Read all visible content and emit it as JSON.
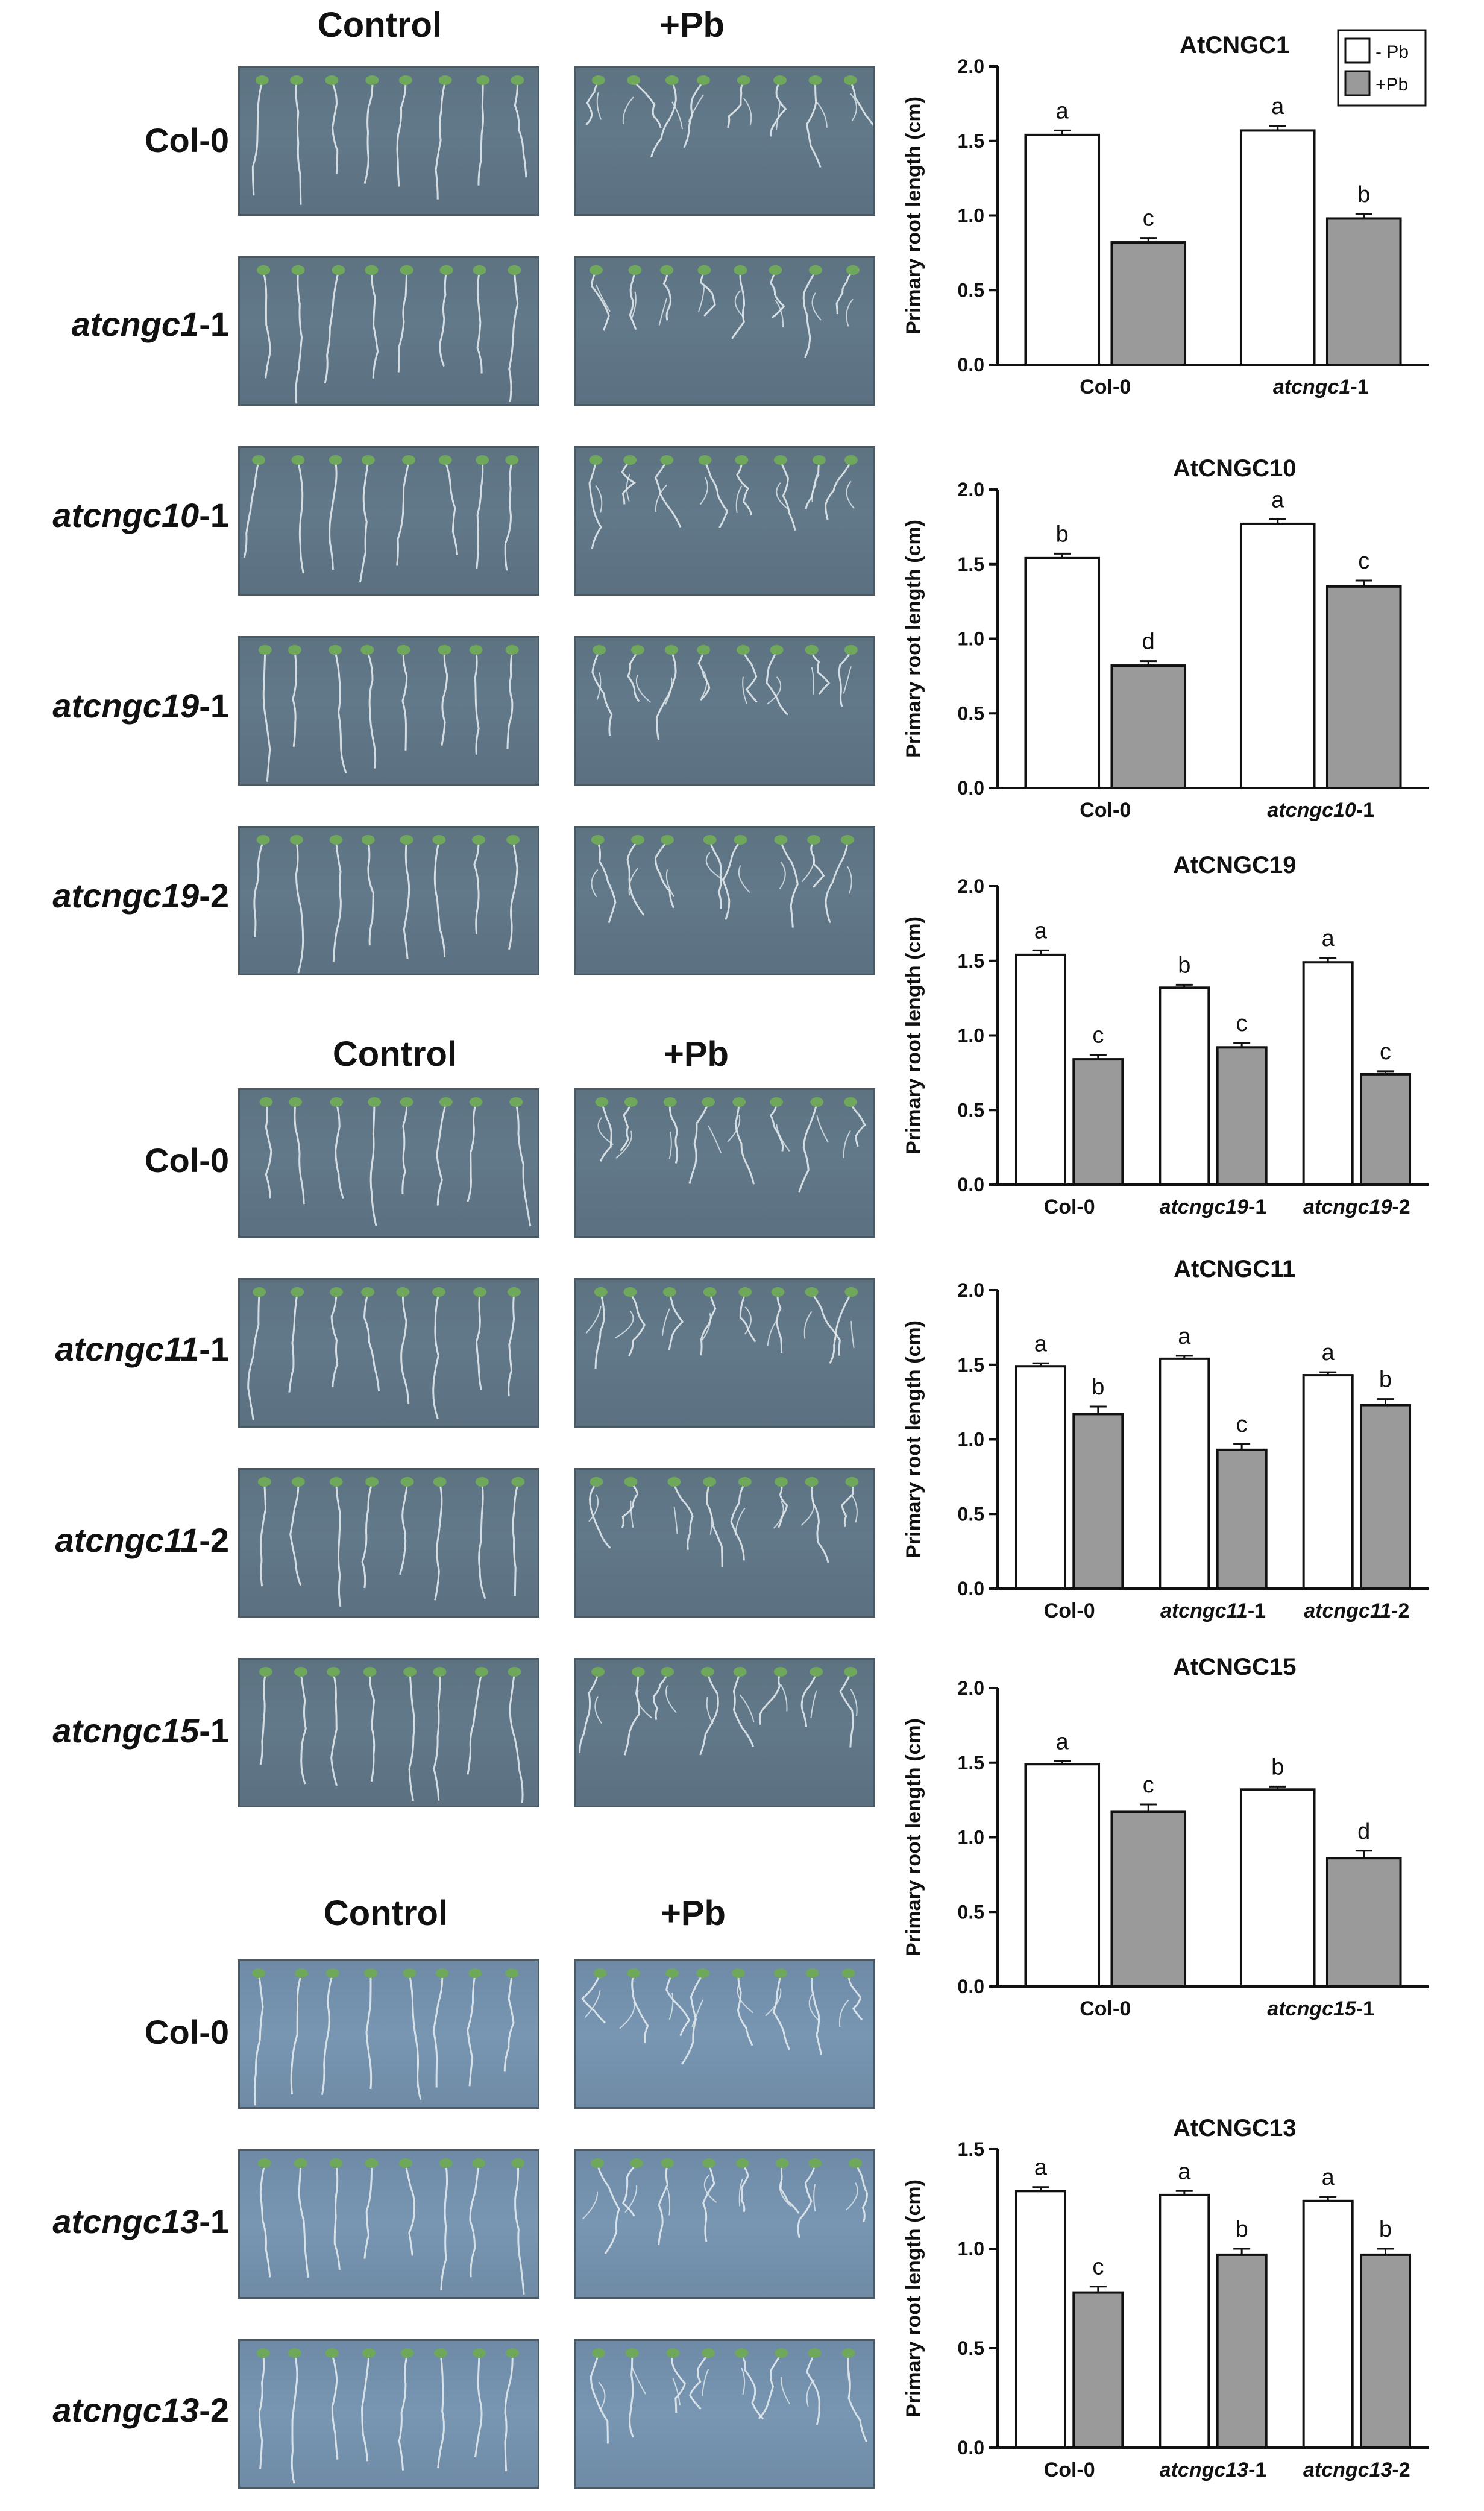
{
  "figure": {
    "group1": {
      "headers": {
        "control": "Control",
        "pb": "+Pb"
      },
      "rows": [
        {
          "italic": "",
          "plain": "Col-0"
        },
        {
          "italic": "atcngc1",
          "plain": "-1"
        },
        {
          "italic": "atcngc10",
          "plain": "-1"
        },
        {
          "italic": "atcngc19",
          "plain": "-1"
        },
        {
          "italic": "atcngc19",
          "plain": "-2"
        }
      ]
    },
    "group2": {
      "headers": {
        "control": "Control",
        "pb": "+Pb"
      },
      "rows": [
        {
          "italic": "",
          "plain": "Col-0"
        },
        {
          "italic": "atcngc11",
          "plain": "-1"
        },
        {
          "italic": "atcngc11",
          "plain": "-2"
        },
        {
          "italic": "atcngc15",
          "plain": "-1"
        }
      ]
    },
    "group3": {
      "headers": {
        "control": "Control",
        "pb": "+Pb"
      },
      "rows": [
        {
          "italic": "",
          "plain": "Col-0"
        },
        {
          "italic": "atcngc13",
          "plain": "-1"
        },
        {
          "italic": "atcngc13",
          "plain": "-2"
        }
      ]
    }
  },
  "legend": {
    "minus": "- Pb",
    "plus": "+Pb"
  },
  "colors": {
    "minus_fill": "#ffffff",
    "plus_fill": "#9a9a9a",
    "stroke": "#111111"
  },
  "chart_data": [
    {
      "type": "bar",
      "title": "AtCNGC1",
      "ylabel": "Primary root length (cm)",
      "ylim": [
        0,
        2.0
      ],
      "yticks": [
        "0.0",
        "0.5",
        "1.0",
        "1.5",
        "2.0"
      ],
      "legend": true,
      "categories": [
        {
          "italic": "",
          "plain": "Col-0"
        },
        {
          "italic": "atcngc1",
          "plain": "-1"
        }
      ],
      "series": [
        {
          "name": "- Pb",
          "values": [
            1.54,
            1.57
          ],
          "errors": [
            0.03,
            0.03
          ],
          "letters": [
            "a",
            "a"
          ]
        },
        {
          "name": "+Pb",
          "values": [
            0.82,
            0.98
          ],
          "errors": [
            0.03,
            0.03
          ],
          "letters": [
            "c",
            "b"
          ]
        }
      ]
    },
    {
      "type": "bar",
      "title": "AtCNGC10",
      "ylabel": "Primary root length (cm)",
      "ylim": [
        0,
        2.0
      ],
      "yticks": [
        "0.0",
        "0.5",
        "1.0",
        "1.5",
        "2.0"
      ],
      "categories": [
        {
          "italic": "",
          "plain": "Col-0"
        },
        {
          "italic": "atcngc10",
          "plain": "-1"
        }
      ],
      "series": [
        {
          "name": "- Pb",
          "values": [
            1.54,
            1.77
          ],
          "errors": [
            0.03,
            0.03
          ],
          "letters": [
            "b",
            "a"
          ]
        },
        {
          "name": "+Pb",
          "values": [
            0.82,
            1.35
          ],
          "errors": [
            0.03,
            0.04
          ],
          "letters": [
            "d",
            "c"
          ]
        }
      ]
    },
    {
      "type": "bar",
      "title": "AtCNGC19",
      "ylabel": "Primary root length (cm)",
      "ylim": [
        0,
        2.0
      ],
      "yticks": [
        "0.0",
        "0.5",
        "1.0",
        "1.5",
        "2.0"
      ],
      "categories": [
        {
          "italic": "",
          "plain": "Col-0"
        },
        {
          "italic": "atcngc19",
          "plain": "-1"
        },
        {
          "italic": "atcngc19",
          "plain": "-2"
        }
      ],
      "series": [
        {
          "name": "- Pb",
          "values": [
            1.54,
            1.32,
            1.49
          ],
          "errors": [
            0.03,
            0.02,
            0.03
          ],
          "letters": [
            "a",
            "b",
            "a"
          ]
        },
        {
          "name": "+Pb",
          "values": [
            0.84,
            0.92,
            0.74
          ],
          "errors": [
            0.03,
            0.03,
            0.02
          ],
          "letters": [
            "c",
            "c",
            "c"
          ]
        }
      ]
    },
    {
      "type": "bar",
      "title": "AtCNGC11",
      "ylabel": "Primary root length (cm)",
      "ylim": [
        0,
        2.0
      ],
      "yticks": [
        "0.0",
        "0.5",
        "1.0",
        "1.5",
        "2.0"
      ],
      "categories": [
        {
          "italic": "",
          "plain": "Col-0"
        },
        {
          "italic": "atcngc11",
          "plain": "-1"
        },
        {
          "italic": "atcngc11",
          "plain": "-2"
        }
      ],
      "series": [
        {
          "name": "- Pb",
          "values": [
            1.49,
            1.54,
            1.43
          ],
          "errors": [
            0.02,
            0.02,
            0.02
          ],
          "letters": [
            "a",
            "a",
            "a"
          ]
        },
        {
          "name": "+Pb",
          "values": [
            1.17,
            0.93,
            1.23
          ],
          "errors": [
            0.05,
            0.04,
            0.04
          ],
          "letters": [
            "b",
            "c",
            "b"
          ]
        }
      ]
    },
    {
      "type": "bar",
      "title": "AtCNGC15",
      "ylabel": "Primary root length (cm)",
      "ylim": [
        0,
        2.0
      ],
      "yticks": [
        "0.0",
        "0.5",
        "1.0",
        "1.5",
        "2.0"
      ],
      "categories": [
        {
          "italic": "",
          "plain": "Col-0"
        },
        {
          "italic": "atcngc15",
          "plain": "-1"
        }
      ],
      "series": [
        {
          "name": "- Pb",
          "values": [
            1.49,
            1.32
          ],
          "errors": [
            0.02,
            0.02
          ],
          "letters": [
            "a",
            "b"
          ]
        },
        {
          "name": "+Pb",
          "values": [
            1.17,
            0.86
          ],
          "errors": [
            0.05,
            0.05
          ],
          "letters": [
            "c",
            "d"
          ]
        }
      ]
    },
    {
      "type": "bar",
      "title": "AtCNGC13",
      "ylabel": "Primary root length (cm)",
      "ylim": [
        0,
        1.5
      ],
      "yticks": [
        "0.0",
        "0.5",
        "1.0",
        "1.5"
      ],
      "categories": [
        {
          "italic": "",
          "plain": "Col-0"
        },
        {
          "italic": "atcngc13",
          "plain": "-1"
        },
        {
          "italic": "atcngc13",
          "plain": "-2"
        }
      ],
      "series": [
        {
          "name": "- Pb",
          "values": [
            1.29,
            1.27,
            1.24
          ],
          "errors": [
            0.02,
            0.02,
            0.02
          ],
          "letters": [
            "a",
            "a",
            "a"
          ]
        },
        {
          "name": "+Pb",
          "values": [
            0.78,
            0.97,
            0.97
          ],
          "errors": [
            0.03,
            0.03,
            0.03
          ],
          "letters": [
            "c",
            "b",
            "b"
          ]
        }
      ]
    }
  ]
}
